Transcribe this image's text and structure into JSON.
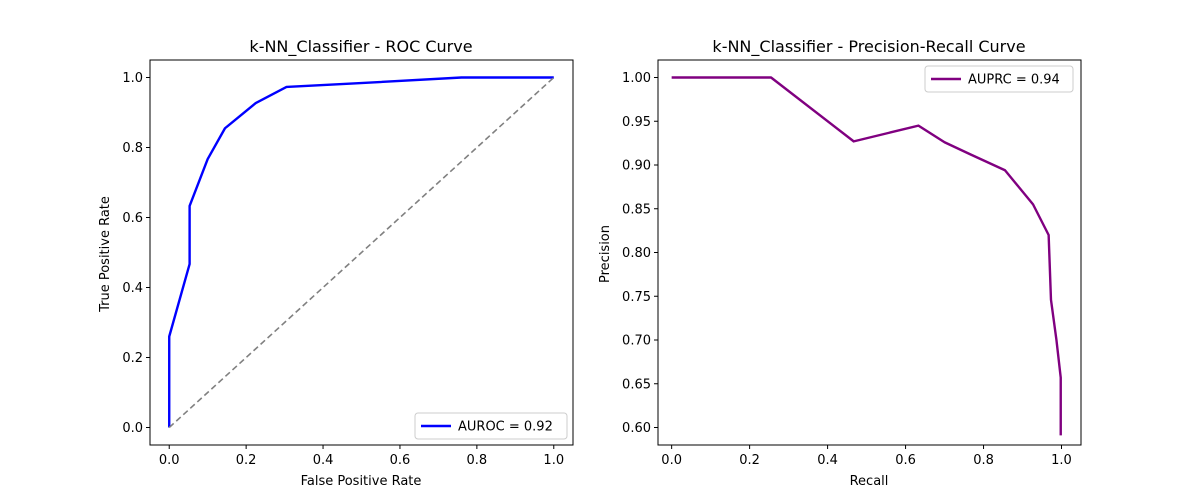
{
  "chart_data": [
    {
      "type": "line",
      "title": "k-NN_Classifier - ROC Curve",
      "xlabel": "False Positive Rate",
      "ylabel": "True Positive Rate",
      "xlim": [
        -0.05,
        1.05
      ],
      "ylim": [
        -0.05,
        1.05
      ],
      "xticks": [
        0.0,
        0.2,
        0.4,
        0.6,
        0.8,
        1.0
      ],
      "xtick_labels": [
        "0.0",
        "0.2",
        "0.4",
        "0.6",
        "0.8",
        "1.0"
      ],
      "yticks": [
        0.0,
        0.2,
        0.4,
        0.6,
        0.8,
        1.0
      ],
      "ytick_labels": [
        "0.0",
        "0.2",
        "0.4",
        "0.6",
        "0.8",
        "1.0"
      ],
      "legend_position": "lower-right",
      "grid": false,
      "series": [
        {
          "name": "AUROC = 0.92",
          "color": "#0000ff",
          "style": "solid",
          "x": [
            0.0,
            0.0,
            0.0,
            0.053,
            0.053,
            0.1,
            0.145,
            0.225,
            0.305,
            0.48,
            0.76,
            1.0
          ],
          "y": [
            0.0,
            0.26,
            0.26,
            0.467,
            0.633,
            0.767,
            0.855,
            0.927,
            0.973,
            0.983,
            1.0,
            1.0
          ]
        },
        {
          "name": "",
          "color": "#808080",
          "style": "dashed",
          "x": [
            0.0,
            1.0
          ],
          "y": [
            0.0,
            1.0
          ]
        }
      ]
    },
    {
      "type": "line",
      "title": "k-NN_Classifier - Precision-Recall Curve",
      "xlabel": "Recall",
      "ylabel": "Precision",
      "xlim": [
        -0.035,
        1.05
      ],
      "ylim": [
        0.58,
        1.02
      ],
      "xticks": [
        0.0,
        0.2,
        0.4,
        0.6,
        0.8,
        1.0
      ],
      "xtick_labels": [
        "0.0",
        "0.2",
        "0.4",
        "0.6",
        "0.8",
        "1.0"
      ],
      "yticks": [
        0.6,
        0.65,
        0.7,
        0.75,
        0.8,
        0.85,
        0.9,
        0.95,
        1.0
      ],
      "ytick_labels": [
        "0.60",
        "0.65",
        "0.70",
        "0.75",
        "0.80",
        "0.85",
        "0.90",
        "0.95",
        "1.00"
      ],
      "legend_position": "upper-right",
      "grid": false,
      "series": [
        {
          "name": "AUPRC = 0.94",
          "color": "#800080",
          "style": "solid",
          "x": [
            0.0,
            0.255,
            0.467,
            0.633,
            0.7,
            0.767,
            0.855,
            0.927,
            0.967,
            0.973,
            0.987,
            0.998,
            0.998
          ],
          "y": [
            1.0,
            1.0,
            0.927,
            0.945,
            0.926,
            0.912,
            0.894,
            0.855,
            0.82,
            0.746,
            0.7,
            0.657,
            0.591
          ]
        }
      ]
    }
  ]
}
